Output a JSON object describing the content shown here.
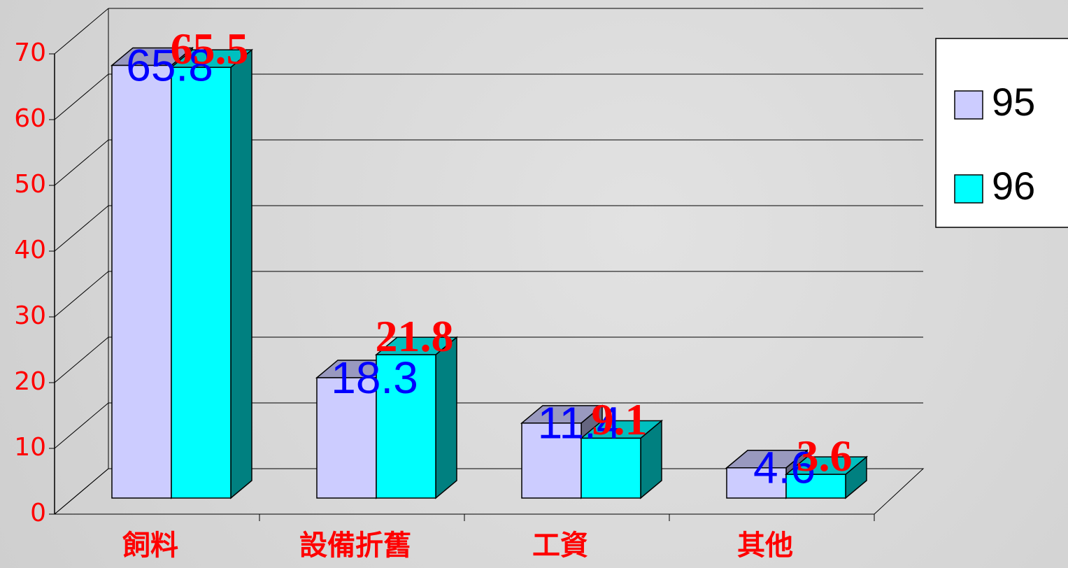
{
  "chart_data": {
    "type": "bar3d",
    "categories": [
      "飼料",
      "設備折舊",
      "工資",
      "其他"
    ],
    "series": [
      {
        "name": "95",
        "color": "#ccccff",
        "values": [
          65.8,
          18.3,
          11.4,
          4.6
        ]
      },
      {
        "name": "96",
        "color": "#00ffff",
        "values": [
          65.5,
          21.8,
          9.1,
          3.6
        ]
      }
    ],
    "ylim": [
      0,
      70
    ],
    "yticks": [
      0,
      10,
      20,
      30,
      40,
      50,
      60,
      70
    ],
    "grid": true,
    "legend": "right"
  }
}
